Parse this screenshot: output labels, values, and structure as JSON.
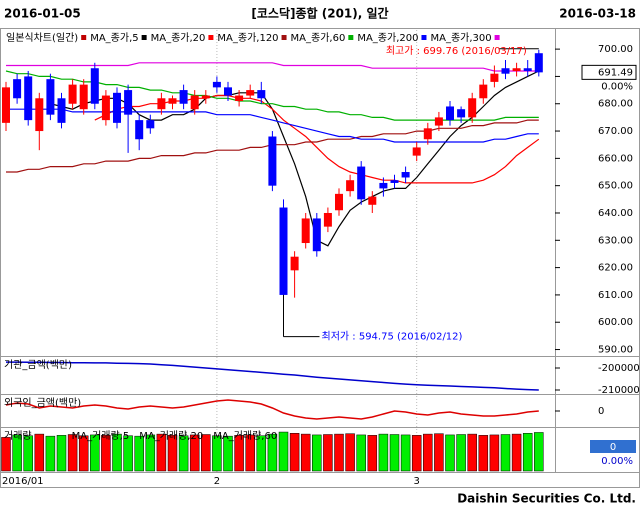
{
  "header": {
    "start": "2016-01-05",
    "title": "[코스닥]종합 (201), 일간",
    "end": "2016-03-18"
  },
  "footer": "Daishin Securities Co. Ltd.",
  "chart_data": [
    {
      "type": "candlestick",
      "title": "일본식차트(일간)",
      "title_color": "#c00000",
      "categories": [
        "2016/01",
        null,
        null,
        null,
        null,
        null,
        null,
        null,
        null,
        null,
        null,
        null,
        null,
        null,
        null,
        null,
        null,
        null,
        null,
        "2",
        null,
        null,
        null,
        null,
        null,
        null,
        null,
        null,
        null,
        null,
        null,
        null,
        null,
        null,
        null,
        null,
        null,
        "3",
        null,
        null,
        null,
        null,
        null,
        null,
        null,
        null,
        null,
        null,
        null
      ],
      "open": [
        673,
        689,
        690,
        670,
        689,
        682,
        680,
        678,
        693,
        674,
        684,
        685,
        674,
        674,
        678,
        680,
        685,
        678,
        682,
        688,
        686,
        681,
        683,
        685,
        668,
        642,
        619,
        629,
        638,
        635,
        641,
        648,
        657,
        643,
        651,
        652,
        655,
        661,
        667,
        672,
        679,
        678,
        675,
        682,
        688,
        693,
        692,
        693,
        698.5
      ],
      "high": [
        688,
        691,
        692,
        684,
        691,
        684,
        689,
        689,
        695,
        685,
        686,
        687,
        676,
        676,
        684,
        683,
        687,
        685,
        685,
        690,
        688,
        685,
        687,
        688,
        670,
        645,
        626,
        640,
        640,
        642,
        649,
        654,
        659,
        648,
        653,
        654,
        657,
        666,
        673,
        677,
        681,
        679,
        684,
        689,
        694,
        696,
        695,
        696,
        699.76
      ],
      "low": [
        670,
        680,
        672,
        663,
        674,
        671,
        678,
        676,
        678,
        672,
        671,
        662,
        663,
        669,
        676,
        678,
        678,
        676,
        680,
        684,
        681,
        679,
        682,
        680,
        648,
        594.75,
        609,
        627,
        624,
        633,
        639,
        646,
        643,
        640,
        646,
        649,
        651,
        659,
        665,
        670,
        672,
        673,
        673,
        680,
        686,
        689,
        690,
        690,
        690
      ],
      "close": [
        686,
        682,
        674,
        682,
        676,
        673,
        687,
        687,
        680,
        683,
        673,
        676,
        667,
        671,
        682,
        682,
        680,
        683,
        683,
        686,
        683,
        683,
        685,
        682,
        650,
        610,
        624,
        638,
        626,
        640,
        647,
        652,
        645,
        646,
        649,
        651,
        653,
        664,
        671,
        675,
        674,
        675,
        682,
        687,
        691,
        691,
        693,
        692,
        691.49
      ],
      "up_color": "#ff0000",
      "down_color": "#0000ff",
      "series": [
        {
          "name": "MA_종가,5",
          "color": "#000000",
          "values": [
            null,
            null,
            null,
            null,
            680,
            679,
            678,
            680,
            681,
            682,
            682,
            680,
            676,
            674,
            674,
            676,
            676,
            678,
            682,
            683,
            683,
            684,
            684,
            684,
            678,
            668,
            658,
            646,
            630,
            628,
            635,
            641,
            644,
            646,
            648,
            649,
            649,
            653,
            658,
            663,
            668,
            672,
            675,
            679,
            683,
            686,
            688,
            690,
            692
          ]
        },
        {
          "name": "MA_종가,20",
          "color": "#ff0000",
          "values": [
            null,
            null,
            null,
            null,
            null,
            null,
            null,
            null,
            674,
            676,
            678,
            679,
            679,
            680,
            680,
            681,
            681,
            682,
            682,
            683,
            683,
            682,
            682,
            681,
            678,
            674,
            671,
            668,
            664,
            660,
            657,
            655,
            654,
            653,
            652,
            652,
            651,
            651,
            651,
            651,
            651,
            651,
            651,
            652,
            654,
            657,
            661,
            664,
            667
          ]
        },
        {
          "name": "MA_종가,120",
          "color": "#a01010",
          "values": [
            655,
            655,
            656,
            656,
            657,
            657,
            657,
            658,
            658,
            659,
            659,
            659,
            660,
            660,
            661,
            661,
            661,
            662,
            662,
            663,
            663,
            663,
            664,
            664,
            665,
            665,
            665,
            666,
            666,
            667,
            667,
            667,
            668,
            668,
            669,
            669,
            669,
            670,
            670,
            671,
            671,
            671,
            672,
            672,
            673,
            673,
            673,
            674,
            674
          ]
        },
        {
          "name": "MA_종가,60",
          "color": "#00b000",
          "values": [
            692,
            691,
            691,
            690,
            690,
            689,
            689,
            688,
            688,
            687,
            687,
            686,
            686,
            685,
            685,
            684,
            684,
            683,
            683,
            682,
            682,
            681,
            681,
            680,
            680,
            679,
            679,
            678,
            678,
            677,
            677,
            676,
            676,
            675,
            675,
            674,
            674,
            674,
            674,
            674,
            674,
            674,
            674,
            674,
            674,
            675,
            675,
            675,
            675
          ]
        },
        {
          "name": "MA_종가,200",
          "color": "#0000ff",
          "values": [
            678,
            678,
            678,
            678,
            678,
            678,
            677,
            677,
            677,
            677,
            677,
            677,
            677,
            677,
            677,
            677,
            677,
            677,
            677,
            676,
            676,
            676,
            676,
            675,
            674,
            673,
            672,
            671,
            670,
            669,
            668,
            668,
            667,
            667,
            667,
            666,
            666,
            666,
            666,
            666,
            666,
            666,
            666,
            666,
            667,
            667,
            668,
            669,
            669
          ]
        },
        {
          "name": "MA_종가,300",
          "color": "#e000e0",
          "values": [
            694,
            694,
            694,
            694,
            694,
            694,
            694,
            694,
            694,
            694,
            694,
            694,
            695,
            695,
            695,
            695,
            695,
            695,
            695,
            695,
            695,
            695,
            695,
            695,
            695,
            694,
            694,
            694,
            694,
            694,
            694,
            694,
            694,
            693,
            693,
            693,
            693,
            693,
            693,
            693,
            693,
            693,
            693,
            693,
            692,
            692,
            692,
            692,
            692
          ]
        }
      ],
      "ylim": [
        588,
        707
      ],
      "yticks": [
        {
          "value": 590,
          "label": "590.00"
        },
        {
          "value": 600,
          "label": "600.00"
        },
        {
          "value": 610,
          "label": "610.00"
        },
        {
          "value": 620,
          "label": "620.00"
        },
        {
          "value": 630,
          "label": "630.00"
        },
        {
          "value": 640,
          "label": "640.00"
        },
        {
          "value": 650,
          "label": "650.00"
        },
        {
          "value": 660,
          "label": "660.00"
        },
        {
          "value": 670,
          "label": "670.00"
        },
        {
          "value": 680,
          "label": "680.00"
        },
        {
          "value": 690,
          "label": "690.00"
        },
        {
          "value": 700,
          "label": "700.00"
        }
      ],
      "annotations": [
        "최고가 : 699.76 (2016/03/17)",
        "최저가 : 594.75 (2016/02/12)"
      ],
      "last_price": 691.49,
      "last_change": "0.00%"
    },
    {
      "type": "line",
      "title": "기관_금액(백만)",
      "color": "#0000cc",
      "values": [
        -197300,
        -197300,
        -197400,
        -197400,
        -197500,
        -197500,
        -197600,
        -197600,
        -197700,
        -197700,
        -197800,
        -197900,
        -198000,
        -198200,
        -198500,
        -198800,
        -199200,
        -199600,
        -200000,
        -200400,
        -200800,
        -201200,
        -201600,
        -202000,
        -202400,
        -202800,
        -203200,
        -203700,
        -204200,
        -204600,
        -205000,
        -205400,
        -205800,
        -206200,
        -206600,
        -207000,
        -207300,
        -207600,
        -207800,
        -208000,
        -208200,
        -208400,
        -208600,
        -208800,
        -209000,
        -209300,
        -209600,
        -209800,
        -210000
      ],
      "ylim": [
        -211360,
        -195450
      ],
      "yticks": [
        -200000,
        -210000
      ]
    },
    {
      "type": "line",
      "title": "외국인_금액(백만)",
      "color": "#dd0000",
      "values": [
        6000,
        8000,
        7000,
        3000,
        5000,
        4000,
        3000,
        5000,
        6000,
        5000,
        3000,
        2000,
        4000,
        5000,
        4000,
        3000,
        4000,
        6000,
        8000,
        10000,
        11000,
        10000,
        9000,
        7000,
        3000,
        -2000,
        -5000,
        -7000,
        -8000,
        -7000,
        -6000,
        -7000,
        -8000,
        -6000,
        -3000,
        0,
        -1000,
        -3000,
        -4000,
        -2000,
        -1000,
        -3000,
        -4000,
        -5000,
        -5000,
        -4000,
        -3000,
        -1000,
        0
      ],
      "ylim": [
        -15000,
        15000
      ],
      "yticks": [
        0
      ]
    },
    {
      "type": "bar",
      "title": "거래량",
      "legend": [
        "MA_거래량,5",
        "MA_거래량,20",
        "MA_거래량,60"
      ],
      "values": [
        820,
        880,
        860,
        900,
        850,
        870,
        890,
        860,
        880,
        870,
        900,
        860,
        850,
        880,
        900,
        870,
        860,
        880,
        890,
        860,
        850,
        870,
        880,
        860,
        900,
        950,
        920,
        900,
        880,
        890,
        900,
        910,
        880,
        870,
        900,
        890,
        880,
        870,
        900,
        910,
        880,
        890,
        900,
        870,
        880,
        890,
        900,
        920,
        940
      ],
      "up_color": "#ff0000",
      "down_color": "#00ee00",
      "ylim": [
        0,
        1000
      ],
      "last_value": 0,
      "last_change": "0.00%"
    }
  ]
}
